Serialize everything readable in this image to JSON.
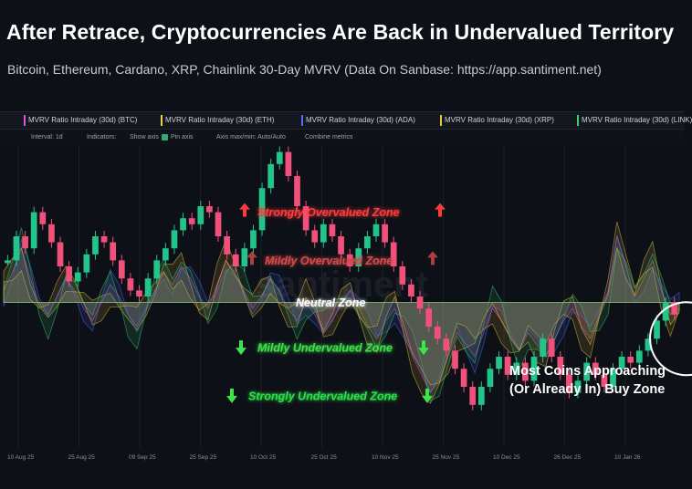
{
  "header": {
    "title": "After Retrace, Cryptocurrencies Are Back in Undervalued Territory",
    "subtitle": "Bitcoin, Ethereum, Cardano, XRP, Chainlink 30-Day MVRV (Data On Sanbase: https://app.santiment.net)"
  },
  "tabs": [
    {
      "label": "MVRV Ratio Intraday (30d) (BTC)",
      "color": "#e254d8"
    },
    {
      "label": "MVRV Ratio Intraday (30d) (ETH)",
      "color": "#f0d24a"
    },
    {
      "label": "MVRV Ratio Intraday (30d) (ADA)",
      "color": "#4f6df5"
    },
    {
      "label": "MVRV Ratio Intraday (30d) (XRP)",
      "color": "#e9c33a"
    },
    {
      "label": "MVRV Ratio Intraday (30d) (LINK)",
      "color": "#3ad06f"
    }
  ],
  "toolbar": {
    "interval": "Interval: 1d",
    "indicators": "Indicators:",
    "show_axis": "Show axis",
    "pin_axis": "Pin axis",
    "axis_maxmin": "Axis max/min: Auto/Auto",
    "combine": "Combine metrics"
  },
  "watermark": "santiment",
  "chart_data": {
    "type": "line",
    "x_ticks": [
      "10 Aug 25",
      "25 Aug 25",
      "09 Sep 25",
      "25 Sep 25",
      "10 Oct 25",
      "25 Oct 25",
      "10 Nov 25",
      "25 Nov 25",
      "10 Dec 25",
      "26 Dec 25",
      "10 Jan 26"
    ],
    "zones": [
      {
        "label": "Strongly Overvalued Zone",
        "color": "#ff3b3b",
        "level": 0.78
      },
      {
        "label": "Mildly Overvalued Zone",
        "color": "#d44a4a",
        "level": 0.62
      },
      {
        "label": "Neutral Zone",
        "color": "#ffffff",
        "level": 0.48
      },
      {
        "label": "Mildly Undervalued Zone",
        "color": "#3ee24a",
        "level": 0.33
      },
      {
        "label": "Strongly Undervalued Zone",
        "color": "#2fe04a",
        "level": 0.17
      }
    ],
    "annotation": [
      "Most Coins Approaching",
      "(Or Already In) Buy Zone"
    ],
    "series": [
      {
        "name": "MVRV Ratio Intraday (30d) (BTC)",
        "color": "#e254d8"
      },
      {
        "name": "MVRV Ratio Intraday (30d) (ETH)",
        "color": "#f0d24a"
      },
      {
        "name": "MVRV Ratio Intraday (30d) (ADA)",
        "color": "#4f6df5"
      },
      {
        "name": "MVRV Ratio Intraday (30d) (XRP)",
        "color": "#e9c33a"
      },
      {
        "name": "MVRV Ratio Intraday (30d) (LINK)",
        "color": "#3ad06f"
      }
    ],
    "price_candles": [
      0.62,
      0.7,
      0.66,
      0.78,
      0.74,
      0.68,
      0.6,
      0.55,
      0.58,
      0.64,
      0.7,
      0.68,
      0.62,
      0.56,
      0.52,
      0.5,
      0.56,
      0.62,
      0.66,
      0.72,
      0.76,
      0.74,
      0.8,
      0.78,
      0.7,
      0.64,
      0.6,
      0.66,
      0.72,
      0.86,
      0.94,
      0.98,
      0.9,
      0.8,
      0.72,
      0.68,
      0.74,
      0.7,
      0.64,
      0.6,
      0.66,
      0.7,
      0.74,
      0.68,
      0.6,
      0.54,
      0.5,
      0.46,
      0.4,
      0.36,
      0.32,
      0.26,
      0.2,
      0.14,
      0.2,
      0.26,
      0.3,
      0.24,
      0.28,
      0.22,
      0.3,
      0.36,
      0.3,
      0.24,
      0.18,
      0.22,
      0.28,
      0.24,
      0.2,
      0.26,
      0.3,
      0.28,
      0.32,
      0.36,
      0.42,
      0.48,
      0.44
    ],
    "mvrv_series": [
      0.52,
      0.58,
      0.66,
      0.56,
      0.48,
      0.44,
      0.5,
      0.56,
      0.52,
      0.46,
      0.42,
      0.48,
      0.54,
      0.5,
      0.44,
      0.4,
      0.46,
      0.52,
      0.58,
      0.54,
      0.6,
      0.56,
      0.5,
      0.46,
      0.54,
      0.62,
      0.58,
      0.52,
      0.46,
      0.5,
      0.56,
      0.52,
      0.46,
      0.42,
      0.48,
      0.44,
      0.38,
      0.42,
      0.48,
      0.52,
      0.46,
      0.4,
      0.36,
      0.42,
      0.46,
      0.38,
      0.3,
      0.24,
      0.18,
      0.22,
      0.3,
      0.38,
      0.34,
      0.3,
      0.38,
      0.46,
      0.42,
      0.36,
      0.32,
      0.38,
      0.34,
      0.3,
      0.36,
      0.42,
      0.46,
      0.4,
      0.36,
      0.44,
      0.52,
      0.7,
      0.6,
      0.5,
      0.56,
      0.62,
      0.52,
      0.44,
      0.48
    ]
  }
}
